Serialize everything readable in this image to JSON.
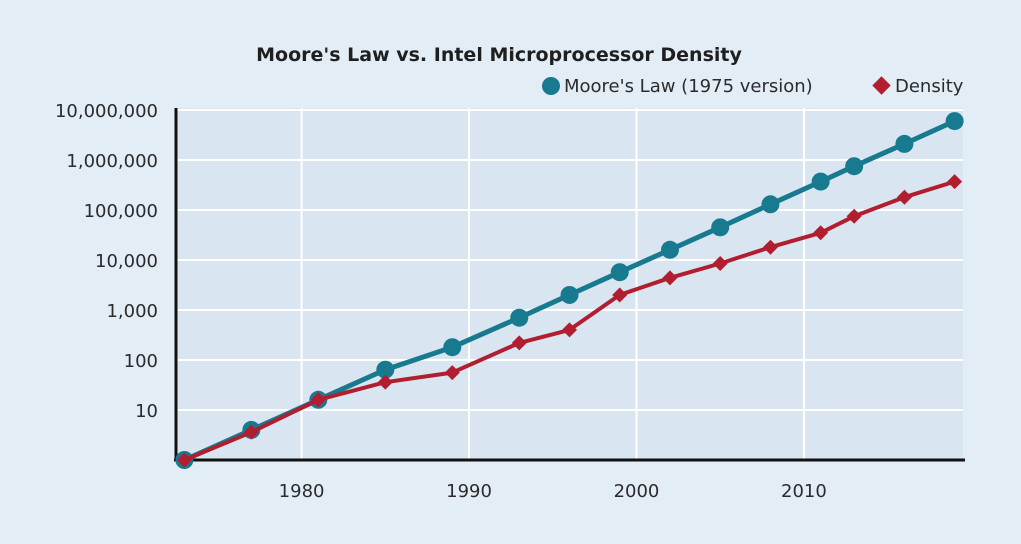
{
  "chart_data": {
    "type": "line",
    "title": "Moore's Law vs. Intel Microprocessor Density",
    "xlabel": "",
    "ylabel": "",
    "y_scale": "log",
    "ylim": [
      1,
      10000000
    ],
    "xlim": [
      1972.5,
      2019.5
    ],
    "grid": true,
    "legend_position": "top-right",
    "x_ticks": [
      {
        "value": 1980,
        "label": "1980"
      },
      {
        "value": 1990,
        "label": "1990"
      },
      {
        "value": 2000,
        "label": "2000"
      },
      {
        "value": 2010,
        "label": "2010"
      }
    ],
    "y_ticks": [
      {
        "value": 10,
        "label": "10"
      },
      {
        "value": 100,
        "label": "100"
      },
      {
        "value": 1000,
        "label": "1,000"
      },
      {
        "value": 10000,
        "label": "10,000"
      },
      {
        "value": 100000,
        "label": "100,000"
      },
      {
        "value": 1000000,
        "label": "1,000,000"
      },
      {
        "value": 10000000,
        "label": "10,000,000"
      }
    ],
    "series": [
      {
        "name": "Moore's Law (1975 version)",
        "color": "#187a8e",
        "marker": "circle",
        "x": [
          1973,
          1977,
          1981,
          1985,
          1989,
          1993,
          1996,
          1999,
          2002,
          2005,
          2008,
          2011,
          2013,
          2016,
          2019
        ],
        "y": [
          1,
          4,
          16,
          64,
          180,
          700,
          2000,
          5700,
          16000,
          45000,
          130000,
          370000,
          750000,
          2100000,
          6000000
        ]
      },
      {
        "name": "Density",
        "color": "#b01e2f",
        "marker": "diamond",
        "x": [
          1973,
          1977,
          1981,
          1985,
          1989,
          1993,
          1996,
          1999,
          2002,
          2005,
          2008,
          2011,
          2013,
          2016,
          2019
        ],
        "y": [
          1,
          3.6,
          16,
          36,
          56,
          220,
          400,
          2000,
          4400,
          8500,
          18000,
          35000,
          75000,
          180000,
          370000
        ]
      }
    ]
  }
}
